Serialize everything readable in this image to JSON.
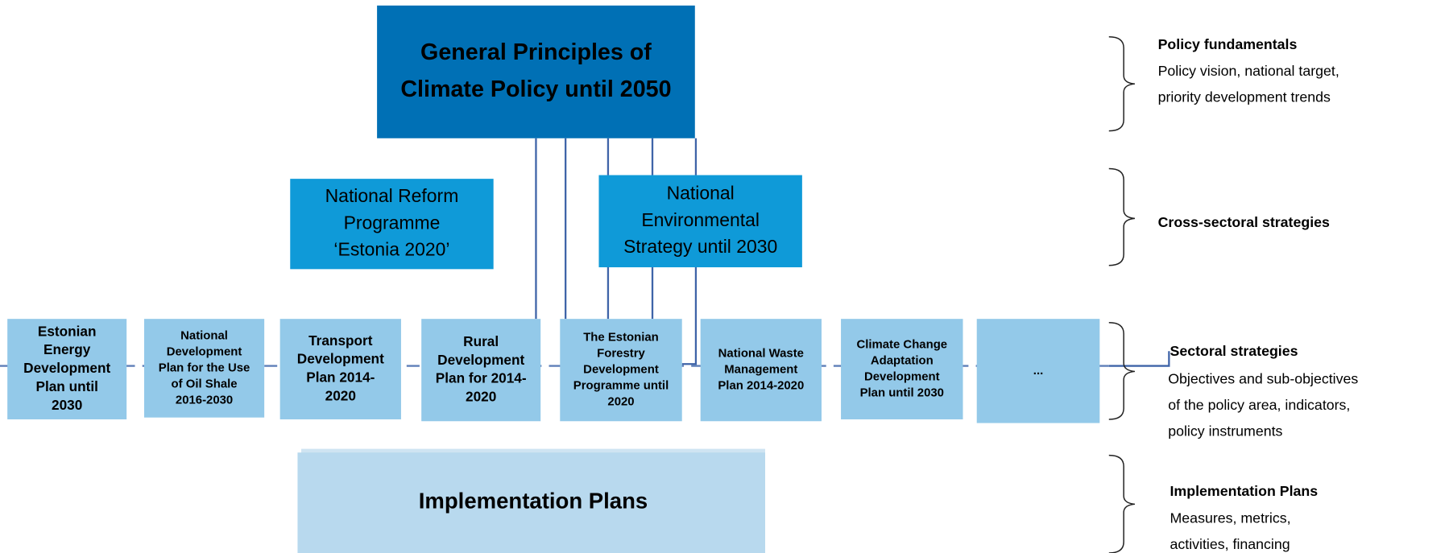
{
  "top_box": {
    "lines": [
      "General Principles of",
      "Climate Policy until 2050"
    ]
  },
  "cross_sectoral": [
    {
      "lines": [
        "National Reform",
        "Programme",
        "‘Estonia 2020’"
      ]
    },
    {
      "lines": [
        "National",
        "Environmental",
        "Strategy until 2030"
      ]
    }
  ],
  "sectoral": [
    {
      "lines": [
        "Estonian",
        "Energy",
        "Development",
        "Plan until",
        "2030"
      ]
    },
    {
      "lines": [
        "National",
        "Development",
        "Plan for the Use",
        "of Oil Shale",
        "2016-2030"
      ]
    },
    {
      "lines": [
        "Transport",
        "Development",
        "Plan 2014-",
        "2020"
      ]
    },
    {
      "lines": [
        "Rural",
        "Development",
        "Plan for 2014-",
        "2020"
      ]
    },
    {
      "lines": [
        "The Estonian",
        "Forestry",
        "Development",
        "Programme until",
        "2020"
      ]
    },
    {
      "lines": [
        "National Waste",
        "Management",
        "Plan 2014-2020"
      ]
    },
    {
      "lines": [
        "Climate Change",
        "Adaptation",
        "Development",
        "Plan until 2030"
      ]
    },
    {
      "lines": [
        "..."
      ]
    }
  ],
  "implementation": {
    "label": "Implementation Plans"
  },
  "levels": [
    {
      "title": "Policy fundamentals",
      "description": [
        "Policy vision, national target,",
        "priority development trends"
      ]
    },
    {
      "title": "Cross-sectoral strategies",
      "description": []
    },
    {
      "title": "Sectoral strategies",
      "description": [
        "Objectives and sub-objectives",
        "of the policy area, indicators,",
        "policy instruments"
      ]
    },
    {
      "title": "Implementation Plans",
      "description": [
        "Measures, metrics,",
        "activities, financing"
      ]
    }
  ]
}
